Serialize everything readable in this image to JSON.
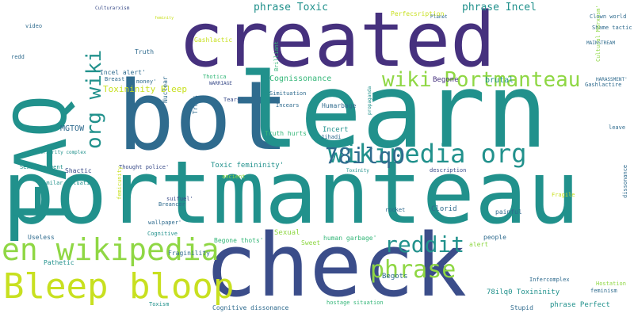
{
  "palette": {
    "purple": "#46317e",
    "indigo": "#3b4d8a",
    "blue": "#2f6b8e",
    "teal": "#21918c",
    "green": "#35b779",
    "lime": "#8fd744",
    "yellow": "#c8e020"
  },
  "words": [
    "portmanteau",
    "bot",
    "learn",
    "created",
    "check",
    "FAQ",
    "Bleep bloop",
    "en wikipedia",
    "wikipedia org",
    "wiki Portmanteau",
    "reddit",
    "phrase",
    "org wiki",
    "78ilq0",
    "phrase Toxic",
    "phrase Incel",
    "Toxininity Bleep",
    "Truth",
    "Incel alert'",
    "Cognissonance",
    "brutal",
    "Begone",
    "Perfecsription",
    "Shame tactic",
    "Clown world",
    "MAINSTREAM",
    "Cultural Marxism'",
    "Culturarxism",
    "feminity",
    "Nuclear",
    "Truts",
    "Humarbage",
    "Incert",
    "Truth hurts",
    "Toxic femininity'",
    "MGTOW",
    "Inferiority complex",
    "Shactic",
    "Sexuarassment",
    "Similar situation",
    "Thought police'",
    "Breancer",
    "Useless",
    "Pathetic",
    "Cognitive",
    "Fraginility",
    "Toxism",
    "Cognitive dissonance",
    "Begone thots'",
    "Sexual",
    "Sweet",
    "human garbage'",
    "hostage situation",
    "Begots",
    "78ilq0 Toxininity",
    "phrase Perfect",
    "Stupid",
    "Infercomplex",
    "Hostation",
    "people",
    "alert",
    "painful",
    "Clorid",
    "rocket",
    "description",
    "Fragile",
    "dissonance",
    "HARASSMENT'",
    "Gashlactire",
    "leave",
    "Tears'",
    "WARRIAGE",
    "Thotica",
    "Gashlactic",
    "money'",
    "Breast",
    "Simituation",
    "Jihadi",
    "Toxinity",
    "propaganda",
    "Incears",
    "Brilliant",
    "video",
    "redd",
    "Planet",
    "feminism",
    "wallpaper'",
    "suifuel'",
    "femicunity",
    "ancient"
  ]
}
